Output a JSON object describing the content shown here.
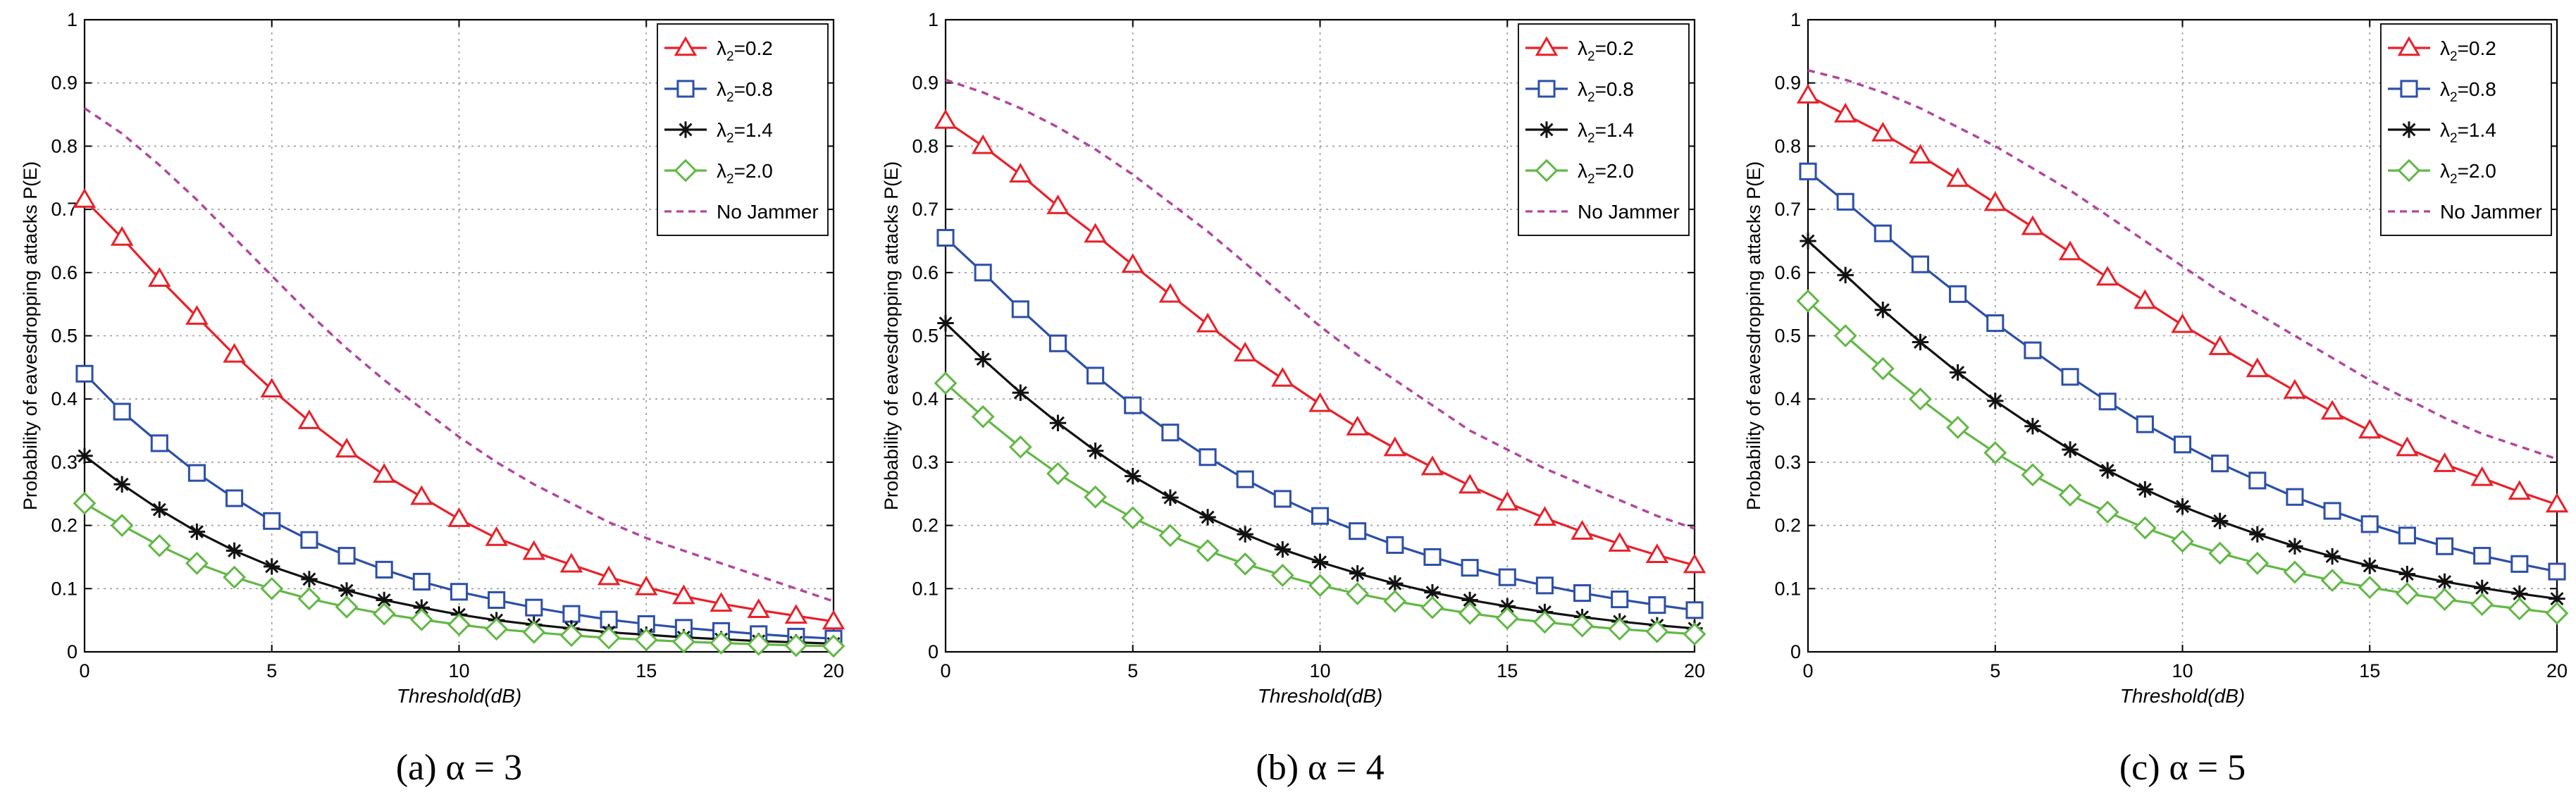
{
  "figure": {
    "x_ticks": [
      0,
      5,
      10,
      15,
      20
    ],
    "y_ticks": [
      0,
      0.1,
      0.2,
      0.3,
      0.4,
      0.5,
      0.6,
      0.7,
      0.8,
      0.9,
      1
    ],
    "y_tick_labels": [
      "0",
      "0.1",
      "0.2",
      "0.3",
      "0.4",
      "0.5",
      "0.6",
      "0.7",
      "0.8",
      "0.9",
      "1"
    ]
  },
  "chart_data": [
    {
      "type": "line",
      "caption": "(a) α = 3",
      "xlabel": "Threshold(dB)",
      "ylabel": "Probability of eavesdropping attacks P(E)",
      "xlim": [
        0,
        20
      ],
      "ylim": [
        0,
        1
      ],
      "grid": true,
      "legend_position": "top-right",
      "x": [
        0,
        1,
        2,
        3,
        4,
        5,
        6,
        7,
        8,
        9,
        10,
        11,
        12,
        13,
        14,
        15,
        16,
        17,
        18,
        19,
        20
      ],
      "series": [
        {
          "name": "λ2=0.2",
          "sym": "λ",
          "sub": "2",
          "val": "=0.2",
          "color": "#e8212a",
          "marker": "triangle",
          "values": [
            0.715,
            0.655,
            0.59,
            0.53,
            0.47,
            0.415,
            0.365,
            0.32,
            0.28,
            0.245,
            0.21,
            0.18,
            0.158,
            0.138,
            0.118,
            0.102,
            0.088,
            0.076,
            0.066,
            0.057,
            0.048
          ]
        },
        {
          "name": "λ2=0.8",
          "sym": "λ",
          "sub": "2",
          "val": "=0.8",
          "color": "#2c4fa8",
          "marker": "square",
          "values": [
            0.44,
            0.38,
            0.33,
            0.283,
            0.243,
            0.207,
            0.177,
            0.152,
            0.13,
            0.111,
            0.095,
            0.082,
            0.07,
            0.06,
            0.051,
            0.044,
            0.038,
            0.033,
            0.028,
            0.024,
            0.021
          ]
        },
        {
          "name": "λ2=1.4",
          "sym": "λ",
          "sub": "2",
          "val": "=1.4",
          "color": "#111111",
          "marker": "star",
          "values": [
            0.31,
            0.265,
            0.225,
            0.19,
            0.16,
            0.135,
            0.115,
            0.097,
            0.082,
            0.07,
            0.059,
            0.05,
            0.043,
            0.037,
            0.031,
            0.027,
            0.023,
            0.02,
            0.017,
            0.015,
            0.013
          ]
        },
        {
          "name": "λ2=2.0",
          "sym": "λ",
          "sub": "2",
          "val": "=2.0",
          "color": "#62b846",
          "marker": "diamond",
          "values": [
            0.235,
            0.2,
            0.168,
            0.14,
            0.118,
            0.1,
            0.084,
            0.071,
            0.06,
            0.051,
            0.043,
            0.036,
            0.031,
            0.026,
            0.022,
            0.019,
            0.016,
            0.014,
            0.012,
            0.01,
            0.009
          ]
        },
        {
          "name": "No Jammer",
          "sym": "No Jammer",
          "sub": "",
          "val": "",
          "color": "#b1479c",
          "marker": "none",
          "dashed": true,
          "values": [
            0.86,
            0.82,
            0.77,
            0.715,
            0.655,
            0.595,
            0.535,
            0.48,
            0.43,
            0.385,
            0.34,
            0.3,
            0.265,
            0.235,
            0.205,
            0.18,
            0.16,
            0.14,
            0.12,
            0.1,
            0.08
          ]
        }
      ]
    },
    {
      "type": "line",
      "caption": "(b) α = 4",
      "xlabel": "Threshold(dB)",
      "ylabel": "Probability of eavesdropping attacks P(E)",
      "xlim": [
        0,
        20
      ],
      "ylim": [
        0,
        1
      ],
      "grid": true,
      "legend_position": "top-right",
      "x": [
        0,
        1,
        2,
        3,
        4,
        5,
        6,
        7,
        8,
        9,
        10,
        11,
        12,
        13,
        14,
        15,
        16,
        17,
        18,
        19,
        20
      ],
      "series": [
        {
          "name": "λ2=0.2",
          "sym": "λ",
          "sub": "2",
          "val": "=0.2",
          "color": "#e8212a",
          "marker": "triangle",
          "values": [
            0.84,
            0.8,
            0.755,
            0.705,
            0.66,
            0.612,
            0.565,
            0.518,
            0.472,
            0.432,
            0.392,
            0.355,
            0.322,
            0.292,
            0.263,
            0.236,
            0.212,
            0.19,
            0.171,
            0.153,
            0.137
          ]
        },
        {
          "name": "λ2=0.8",
          "sym": "λ",
          "sub": "2",
          "val": "=0.8",
          "color": "#2c4fa8",
          "marker": "square",
          "values": [
            0.655,
            0.6,
            0.542,
            0.488,
            0.437,
            0.39,
            0.347,
            0.308,
            0.273,
            0.242,
            0.215,
            0.191,
            0.169,
            0.15,
            0.133,
            0.118,
            0.105,
            0.093,
            0.083,
            0.074,
            0.066
          ]
        },
        {
          "name": "λ2=1.4",
          "sym": "λ",
          "sub": "2",
          "val": "=1.4",
          "color": "#111111",
          "marker": "star",
          "values": [
            0.52,
            0.463,
            0.41,
            0.362,
            0.318,
            0.278,
            0.244,
            0.213,
            0.186,
            0.162,
            0.142,
            0.124,
            0.108,
            0.094,
            0.082,
            0.072,
            0.063,
            0.055,
            0.048,
            0.042,
            0.037
          ]
        },
        {
          "name": "λ2=2.0",
          "sym": "λ",
          "sub": "2",
          "val": "=2.0",
          "color": "#62b846",
          "marker": "diamond",
          "values": [
            0.425,
            0.372,
            0.324,
            0.282,
            0.245,
            0.212,
            0.184,
            0.16,
            0.139,
            0.121,
            0.105,
            0.092,
            0.08,
            0.07,
            0.061,
            0.053,
            0.047,
            0.041,
            0.036,
            0.032,
            0.028
          ]
        },
        {
          "name": "No Jammer",
          "sym": "No Jammer",
          "sub": "",
          "val": "",
          "color": "#b1479c",
          "marker": "none",
          "dashed": true,
          "values": [
            0.905,
            0.885,
            0.86,
            0.83,
            0.795,
            0.755,
            0.71,
            0.665,
            0.615,
            0.565,
            0.515,
            0.47,
            0.43,
            0.39,
            0.35,
            0.32,
            0.29,
            0.265,
            0.24,
            0.215,
            0.195
          ]
        }
      ]
    },
    {
      "type": "line",
      "caption": "(c) α = 5",
      "xlabel": "Threshold(dB)",
      "ylabel": "Probability of eavesdropping attacks P(E)",
      "xlim": [
        0,
        20
      ],
      "ylim": [
        0,
        1
      ],
      "grid": true,
      "legend_position": "top-right",
      "x": [
        0,
        1,
        2,
        3,
        4,
        5,
        6,
        7,
        8,
        9,
        10,
        11,
        12,
        13,
        14,
        15,
        16,
        17,
        18,
        19,
        20
      ],
      "series": [
        {
          "name": "λ2=0.2",
          "sym": "λ",
          "sub": "2",
          "val": "=0.2",
          "color": "#e8212a",
          "marker": "triangle",
          "values": [
            0.88,
            0.85,
            0.82,
            0.785,
            0.748,
            0.71,
            0.672,
            0.632,
            0.592,
            0.555,
            0.517,
            0.482,
            0.447,
            0.413,
            0.38,
            0.35,
            0.322,
            0.297,
            0.275,
            0.253,
            0.233
          ]
        },
        {
          "name": "λ2=0.8",
          "sym": "λ",
          "sub": "2",
          "val": "=0.8",
          "color": "#2c4fa8",
          "marker": "square",
          "values": [
            0.76,
            0.712,
            0.662,
            0.613,
            0.566,
            0.52,
            0.477,
            0.435,
            0.396,
            0.36,
            0.328,
            0.298,
            0.271,
            0.245,
            0.223,
            0.202,
            0.184,
            0.167,
            0.152,
            0.139,
            0.127
          ]
        },
        {
          "name": "λ2=1.4",
          "sym": "λ",
          "sub": "2",
          "val": "=1.4",
          "color": "#111111",
          "marker": "star",
          "values": [
            0.65,
            0.596,
            0.541,
            0.49,
            0.442,
            0.397,
            0.357,
            0.32,
            0.287,
            0.257,
            0.23,
            0.207,
            0.186,
            0.167,
            0.151,
            0.136,
            0.123,
            0.111,
            0.101,
            0.092,
            0.084
          ]
        },
        {
          "name": "λ2=2.0",
          "sym": "λ",
          "sub": "2",
          "val": "=2.0",
          "color": "#62b846",
          "marker": "diamond",
          "values": [
            0.555,
            0.5,
            0.448,
            0.4,
            0.355,
            0.315,
            0.28,
            0.248,
            0.221,
            0.196,
            0.175,
            0.156,
            0.14,
            0.126,
            0.113,
            0.102,
            0.092,
            0.083,
            0.075,
            0.068,
            0.061
          ]
        },
        {
          "name": "No Jammer",
          "sym": "No Jammer",
          "sub": "",
          "val": "",
          "color": "#b1479c",
          "marker": "none",
          "dashed": true,
          "values": [
            0.92,
            0.905,
            0.885,
            0.86,
            0.83,
            0.8,
            0.765,
            0.73,
            0.69,
            0.65,
            0.61,
            0.57,
            0.535,
            0.5,
            0.465,
            0.43,
            0.4,
            0.37,
            0.345,
            0.325,
            0.305
          ]
        }
      ]
    }
  ]
}
